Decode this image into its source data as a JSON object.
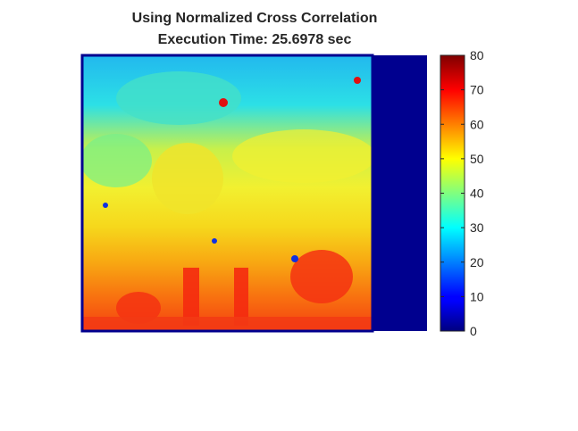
{
  "chart_data": {
    "type": "heatmap",
    "title": [
      "Using Normalized Cross Correlation",
      "Execution Time: 25.6978 sec"
    ],
    "colormap": "jet",
    "clim": [
      0,
      80
    ],
    "colorbar_ticks": [
      0,
      10,
      20,
      30,
      40,
      50,
      60,
      70,
      80
    ],
    "colorbar_tick_labels": [
      "0",
      "10",
      "20",
      "30",
      "40",
      "50",
      "60",
      "70",
      "80"
    ],
    "axes_visible": false,
    "approx_value_rows": [
      {
        "region": "top",
        "value": 25
      },
      {
        "region": "upper-middle",
        "value": 38
      },
      {
        "region": "middle",
        "value": 50
      },
      {
        "region": "lower-middle",
        "value": 58
      },
      {
        "region": "bottom",
        "value": 64
      }
    ],
    "right_band_value": 0
  }
}
